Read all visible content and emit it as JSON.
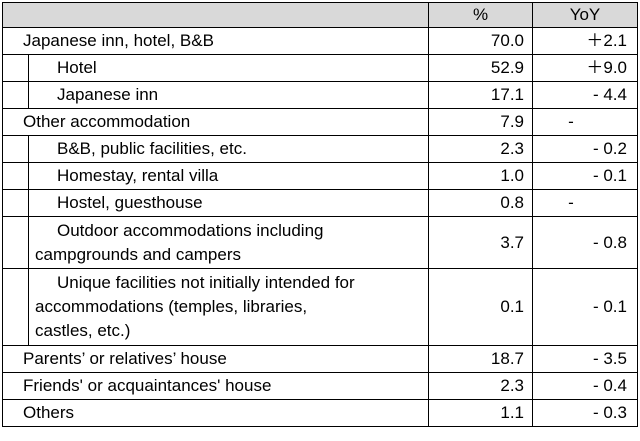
{
  "header": {
    "col1": "",
    "col2": "%",
    "col3": "YoY"
  },
  "rows": [
    {
      "label": "Japanese inn, hotel, B&B",
      "pct": "70.0",
      "yoy": "＋2.1",
      "level": 0
    },
    {
      "label": "Hotel",
      "pct": "52.9",
      "yoy": "＋9.0",
      "level": 1
    },
    {
      "label": "Japanese inn",
      "pct": "17.1",
      "yoy": "- 4.4",
      "level": 1
    },
    {
      "label": "Other accommodation",
      "pct": "7.9",
      "yoy": "-",
      "level": 0
    },
    {
      "label": "B&B, public facilities, etc.",
      "pct": "2.3",
      "yoy": "- 0.2",
      "level": 1
    },
    {
      "label": "Homestay, rental villa",
      "pct": "1.0",
      "yoy": "- 0.1",
      "level": 1
    },
    {
      "label": "Hostel, guesthouse",
      "pct": "0.8",
      "yoy": "-",
      "level": 1
    },
    {
      "label_line1": "Outdoor accommodations including",
      "label_line2": "campgrounds and campers",
      "pct": "3.7",
      "yoy": "- 0.8",
      "level": 1
    },
    {
      "label_line1": "Unique facilities not initially intended for",
      "label_line2": "accommodations (temples, libraries,",
      "label_line3": "castles, etc.)",
      "pct": "0.1",
      "yoy": "- 0.1",
      "level": 1
    },
    {
      "label": "Parents’ or relatives’ house",
      "pct": "18.7",
      "yoy": "- 3.5",
      "level": 0
    },
    {
      "label": "Friends' or acquaintances' house",
      "pct": "2.3",
      "yoy": "- 0.4",
      "level": 0
    },
    {
      "label": "Others",
      "pct": "1.1",
      "yoy": "- 0.3",
      "level": 0
    }
  ]
}
